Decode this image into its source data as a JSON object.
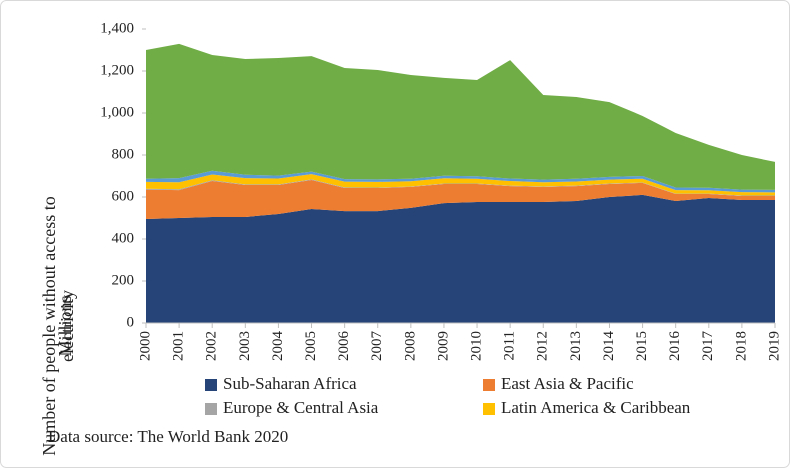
{
  "chart_data": {
    "type": "stacked_area",
    "y_label": "Number of people without access to electricity",
    "y_unit": "Millions",
    "source": "Data source: The World Bank 2020",
    "categories": [
      "2000",
      "2001",
      "2002",
      "2003",
      "2004",
      "2005",
      "2006",
      "2007",
      "2008",
      "2009",
      "2010",
      "2011",
      "2012",
      "2013",
      "2014",
      "2015",
      "2016",
      "2017",
      "2018",
      "2019"
    ],
    "series": [
      {
        "name": "Sub-Saharan Africa",
        "color": "#264478",
        "values": [
          495,
          500,
          505,
          505,
          519,
          543,
          533,
          533,
          548,
          571,
          576,
          576,
          576,
          581,
          600,
          610,
          581,
          595,
          586,
          586
        ]
      },
      {
        "name": "East Asia & Pacific",
        "color": "#ed7d31",
        "values": [
          140,
          133,
          171,
          152,
          138,
          138,
          110,
          110,
          100,
          91,
          86,
          76,
          72,
          71,
          62,
          57,
          33,
          19,
          19,
          19
        ]
      },
      {
        "name": "Europe & Central Asia",
        "color": "#a5a5a5",
        "values": [
          4,
          4,
          4,
          3,
          3,
          3,
          3,
          2,
          2,
          2,
          2,
          2,
          2,
          2,
          2,
          2,
          2,
          2,
          2,
          2
        ]
      },
      {
        "name": "Latin America & Caribbean",
        "color": "#ffc000",
        "values": [
          33,
          33,
          27,
          30,
          28,
          25,
          27,
          27,
          25,
          25,
          23,
          22,
          20,
          20,
          19,
          18,
          17,
          16,
          16,
          15
        ]
      },
      {
        "color": "#5b9bd5",
        "values": [
          15,
          20,
          18,
          16,
          14,
          12,
          12,
          12,
          12,
          12,
          12,
          12,
          13,
          13,
          13,
          13,
          12,
          12,
          12,
          12
        ]
      },
      {
        "color": "#70ad47",
        "values": [
          613,
          639,
          551,
          551,
          560,
          550,
          529,
          521,
          494,
          466,
          458,
          564,
          403,
          389,
          356,
          286,
          260,
          204,
          165,
          133
        ]
      }
    ],
    "ylim": [
      0,
      1400
    ],
    "yticks": [
      0,
      200,
      400,
      600,
      800,
      {
        "value": 1000,
        "label": "1,000"
      },
      {
        "value": 1200,
        "label": "1,200"
      },
      {
        "value": 1400,
        "label": "1,400"
      }
    ]
  }
}
